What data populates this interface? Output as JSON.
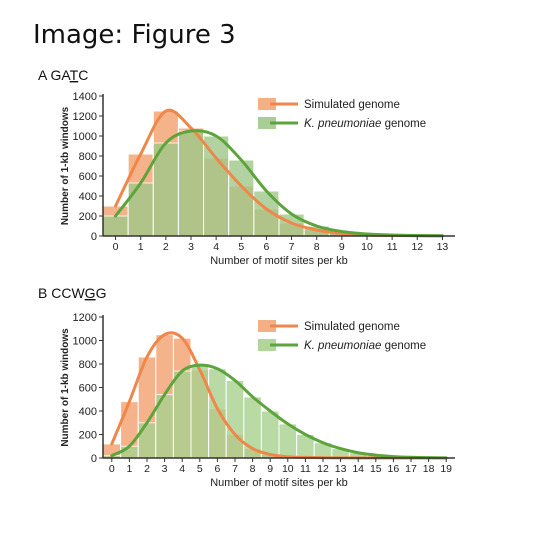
{
  "heading": "Image: Figure 3",
  "chart_data": [
    {
      "type": "bar",
      "panel_letter": "A",
      "motif_prefix": "GA",
      "motif_underlined": "T",
      "motif_suffix": "C",
      "xlabel": "Number of motif sites per kb",
      "ylabel": "Number of 1-kb windows",
      "ylim": [
        0,
        1400
      ],
      "yticks": [
        0,
        200,
        400,
        600,
        800,
        1000,
        1200,
        1400
      ],
      "categories": [
        "0",
        "1",
        "2",
        "3",
        "4",
        "5",
        "6",
        "7",
        "8",
        "9",
        "10",
        "11",
        "12",
        "13"
      ],
      "legend_position": "top-right",
      "series": [
        {
          "name": "Simulated genome",
          "color": "#f0874a",
          "bar_color": "#f4a677",
          "values": [
            300,
            820,
            1250,
            1080,
            780,
            500,
            270,
            130,
            60,
            25,
            10,
            5,
            2,
            1
          ]
        },
        {
          "name": "K. pneumoniae genome",
          "color": "#5ea43c",
          "bar_color": "#9fc98a",
          "values": [
            200,
            530,
            930,
            1050,
            1000,
            760,
            450,
            220,
            100,
            45,
            20,
            10,
            5,
            2
          ]
        }
      ]
    },
    {
      "type": "bar",
      "panel_letter": "B",
      "motif_prefix": "CCW",
      "motif_underlined": "G",
      "motif_suffix": "G",
      "xlabel": "Number of motif sites per kb",
      "ylabel": "Number of 1-kb windows",
      "ylim": [
        0,
        1200
      ],
      "yticks": [
        0,
        200,
        400,
        600,
        800,
        1000,
        1200
      ],
      "categories": [
        "0",
        "1",
        "2",
        "3",
        "4",
        "5",
        "6",
        "7",
        "8",
        "9",
        "10",
        "11",
        "12",
        "13",
        "14",
        "15",
        "16",
        "17",
        "18",
        "19"
      ],
      "legend_position": "top-right",
      "series": [
        {
          "name": "Simulated genome",
          "color": "#f0874a",
          "bar_color": "#f4a677",
          "values": [
            120,
            480,
            860,
            1050,
            1020,
            750,
            420,
            200,
            80,
            30,
            10,
            5,
            2,
            1,
            0,
            0,
            0,
            0,
            0,
            0
          ]
        },
        {
          "name": "K. pneumoniae genome",
          "color": "#5ea43c",
          "bar_color": "#a8d28f",
          "values": [
            20,
            100,
            300,
            540,
            740,
            790,
            760,
            660,
            520,
            400,
            290,
            200,
            130,
            80,
            45,
            25,
            12,
            6,
            3,
            1
          ]
        }
      ]
    }
  ]
}
